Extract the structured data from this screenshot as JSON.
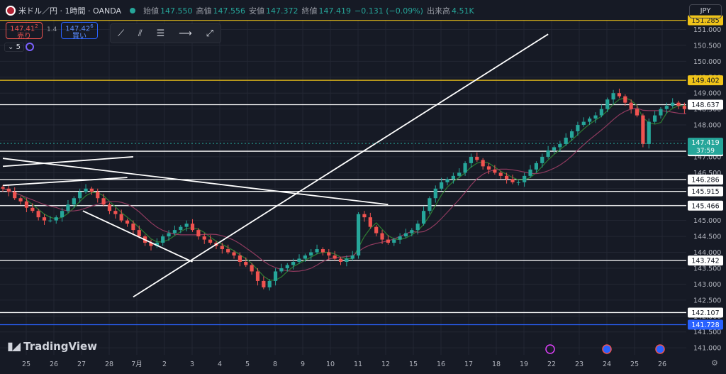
{
  "header": {
    "symbol": "米ドル／円 · 1時間 · OANDA",
    "open_label": "始値",
    "open": "147.550",
    "high_label": "高値",
    "high": "147.556",
    "low_label": "安値",
    "low": "147.372",
    "close_label": "終値",
    "close": "147.419",
    "change": "−0.131 (−0.09%)",
    "volume_label": "出来高",
    "volume": "4.51K"
  },
  "trade": {
    "sell_price": "147.41",
    "sell_sup": "2",
    "sell_label": "売り",
    "spread": "1.4",
    "buy_price": "147.42",
    "buy_sup": "6",
    "buy_label": "買い"
  },
  "toolbar": {
    "icons": [
      "trend-line-icon",
      "multi-line-icon",
      "lines-icon",
      "ray-icon",
      "extended-line-icon"
    ]
  },
  "indicator": {
    "count": "5"
  },
  "currency": "JPY",
  "brand": "TradingView",
  "colors": {
    "up": "#26a69a",
    "down": "#ef5350",
    "bg": "#161a25",
    "grid": "#232733",
    "yellow": "#f0c419",
    "blue": "#2962ff",
    "ma_fast": "#2e7d32",
    "ma_slow": "#8e3a5e"
  },
  "chart_data": {
    "type": "candlestick",
    "y_ticks": [
      141.0,
      141.5,
      142.0,
      142.5,
      143.0,
      143.5,
      144.0,
      144.5,
      145.0,
      145.5,
      146.0,
      146.5,
      147.0,
      147.5,
      148.0,
      148.5,
      149.0,
      149.5,
      150.0,
      150.5,
      151.0
    ],
    "ylim": [
      140.78,
      151.3
    ],
    "x_labels": [
      "25",
      "26",
      "27",
      "28",
      "7月",
      "2",
      "3",
      "4",
      "5",
      "8",
      "9",
      "10",
      "11",
      "12",
      "15",
      "16",
      "17",
      "18",
      "19",
      "22",
      "23",
      "24",
      "25",
      "26"
    ],
    "current_price": "147.419",
    "countdown": "37:59",
    "levels": [
      {
        "price": 151.285,
        "label": "151.285",
        "color": "#f0c419"
      },
      {
        "price": 149.402,
        "label": "149.402",
        "color": "#f0c419"
      },
      {
        "price": 148.637,
        "label": "148.637",
        "color": "#ffffff"
      },
      {
        "price": 147.175,
        "label": "147.175",
        "color": "#ffffff"
      },
      {
        "price": 146.286,
        "label": "146.286",
        "color": "#ffffff"
      },
      {
        "price": 145.915,
        "label": "145.915",
        "color": "#ffffff"
      },
      {
        "price": 145.466,
        "label": "145.466",
        "color": "#ffffff"
      },
      {
        "price": 143.742,
        "label": "143.742",
        "color": "#ffffff"
      },
      {
        "price": 142.107,
        "label": "142.107",
        "color": "#ffffff"
      },
      {
        "price": 141.728,
        "label": "141.728",
        "color": "#2962ff"
      }
    ],
    "trend_lines": [
      {
        "x1": 0,
        "y1": 146.95,
        "x2": 65,
        "y2": 145.5
      },
      {
        "x1": 0,
        "y1": 146.1,
        "x2": 21,
        "y2": 146.35
      },
      {
        "x1": 0,
        "y1": 146.7,
        "x2": 22,
        "y2": 147.0
      },
      {
        "x1": 13.5,
        "y1": 145.3,
        "x2": 32,
        "y2": 143.7
      },
      {
        "x1": 22,
        "y1": 142.6,
        "x2": 92,
        "y2": 150.85
      }
    ],
    "closes": [
      146.0,
      145.9,
      145.7,
      145.6,
      145.4,
      145.3,
      145.1,
      145.0,
      145.0,
      145.1,
      145.3,
      145.5,
      145.7,
      145.9,
      146.0,
      145.9,
      145.7,
      145.5,
      145.3,
      145.2,
      145.0,
      144.9,
      144.7,
      144.5,
      144.3,
      144.2,
      144.3,
      144.5,
      144.6,
      144.7,
      144.8,
      144.9,
      144.7,
      144.5,
      144.4,
      144.3,
      144.2,
      144.1,
      144.0,
      143.9,
      143.7,
      143.6,
      143.4,
      143.1,
      142.9,
      143.1,
      143.4,
      143.5,
      143.6,
      143.7,
      143.8,
      143.9,
      144.0,
      144.1,
      144.0,
      143.9,
      143.8,
      143.7,
      143.8,
      143.9,
      145.2,
      145.1,
      144.8,
      144.6,
      144.4,
      144.3,
      144.4,
      144.5,
      144.6,
      144.7,
      144.9,
      145.3,
      145.7,
      146.0,
      146.2,
      146.3,
      146.4,
      146.5,
      146.8,
      147.0,
      146.9,
      146.7,
      146.6,
      146.5,
      146.4,
      146.3,
      146.2,
      146.2,
      146.4,
      146.6,
      146.8,
      147.0,
      147.2,
      147.3,
      147.4,
      147.6,
      147.8,
      148.0,
      148.1,
      148.2,
      148.3,
      148.5,
      148.8,
      149.0,
      148.9,
      148.7,
      148.5,
      148.3,
      147.4,
      148.1,
      148.3,
      148.5,
      148.6,
      148.7,
      148.6,
      148.5,
      148.7,
      148.8,
      148.7,
      148.6,
      148.5,
      148.3,
      148.1,
      147.9,
      147.6,
      147.42
    ]
  }
}
